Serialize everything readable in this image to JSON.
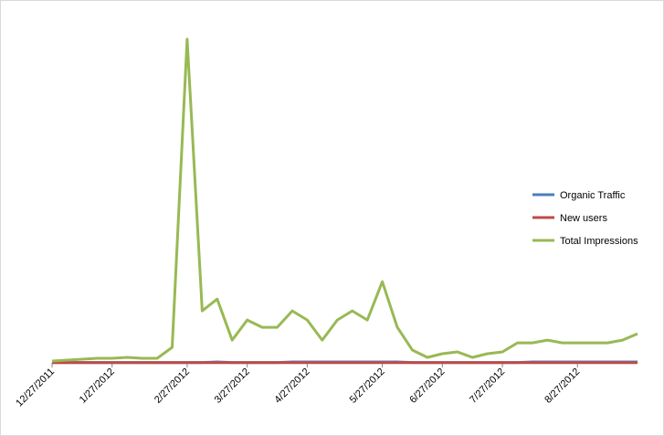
{
  "chart_data": {
    "type": "line",
    "categories": [
      "12/27/2011",
      null,
      null,
      null,
      "1/27/2012",
      null,
      null,
      null,
      null,
      "2/27/2012",
      null,
      null,
      null,
      "3/27/2012",
      null,
      null,
      null,
      "4/27/2012",
      null,
      null,
      null,
      null,
      "5/27/2012",
      null,
      null,
      null,
      "6/27/2012",
      null,
      null,
      null,
      "7/27/2012",
      null,
      null,
      null,
      null,
      "8/27/2012",
      null,
      null,
      null,
      null
    ],
    "series": [
      {
        "name": "Organic Traffic",
        "color": "#4a7ebb",
        "values": [
          0.02,
          0.02,
          0.02,
          0.02,
          0.02,
          0.02,
          0.02,
          0.02,
          0.02,
          0.02,
          0.02,
          0.05,
          0.02,
          0.02,
          0.02,
          0.02,
          0.05,
          0.05,
          0.05,
          0.05,
          0.05,
          0.05,
          0.05,
          0.05,
          0.02,
          0.02,
          0.02,
          0.02,
          0.02,
          0.02,
          0.02,
          0.02,
          0.05,
          0.05,
          0.05,
          0.05,
          0.05,
          0.05,
          0.05,
          0.05
        ]
      },
      {
        "name": "New users",
        "color": "#be4b48",
        "values": [
          0.01,
          0.01,
          0.01,
          0.01,
          0.01,
          0.01,
          0.01,
          0.01,
          0.01,
          0.01,
          0.01,
          0.01,
          0.01,
          0.01,
          0.01,
          0.01,
          0.01,
          0.01,
          0.01,
          0.01,
          0.01,
          0.01,
          0.01,
          0.01,
          0.01,
          0.01,
          0.01,
          0.01,
          0.01,
          0.01,
          0.01,
          0.01,
          0.01,
          0.01,
          0.01,
          0.01,
          0.01,
          0.01,
          0.01,
          0.01
        ]
      },
      {
        "name": "Total Impressions",
        "color": "#98b954",
        "values": [
          0.1,
          0.15,
          0.2,
          0.25,
          0.25,
          0.3,
          0.25,
          0.25,
          0.85,
          17.75,
          2.85,
          3.5,
          1.25,
          2.35,
          1.95,
          1.95,
          2.85,
          2.35,
          1.25,
          2.35,
          2.85,
          2.35,
          4.45,
          1.95,
          0.7,
          0.3,
          0.5,
          0.6,
          0.3,
          0.5,
          0.6,
          1.1,
          1.1,
          1.25,
          1.1,
          1.1,
          1.1,
          1.1,
          1.25,
          1.6
        ]
      }
    ],
    "ylim": [
      0,
      19
    ],
    "legend": "right"
  }
}
